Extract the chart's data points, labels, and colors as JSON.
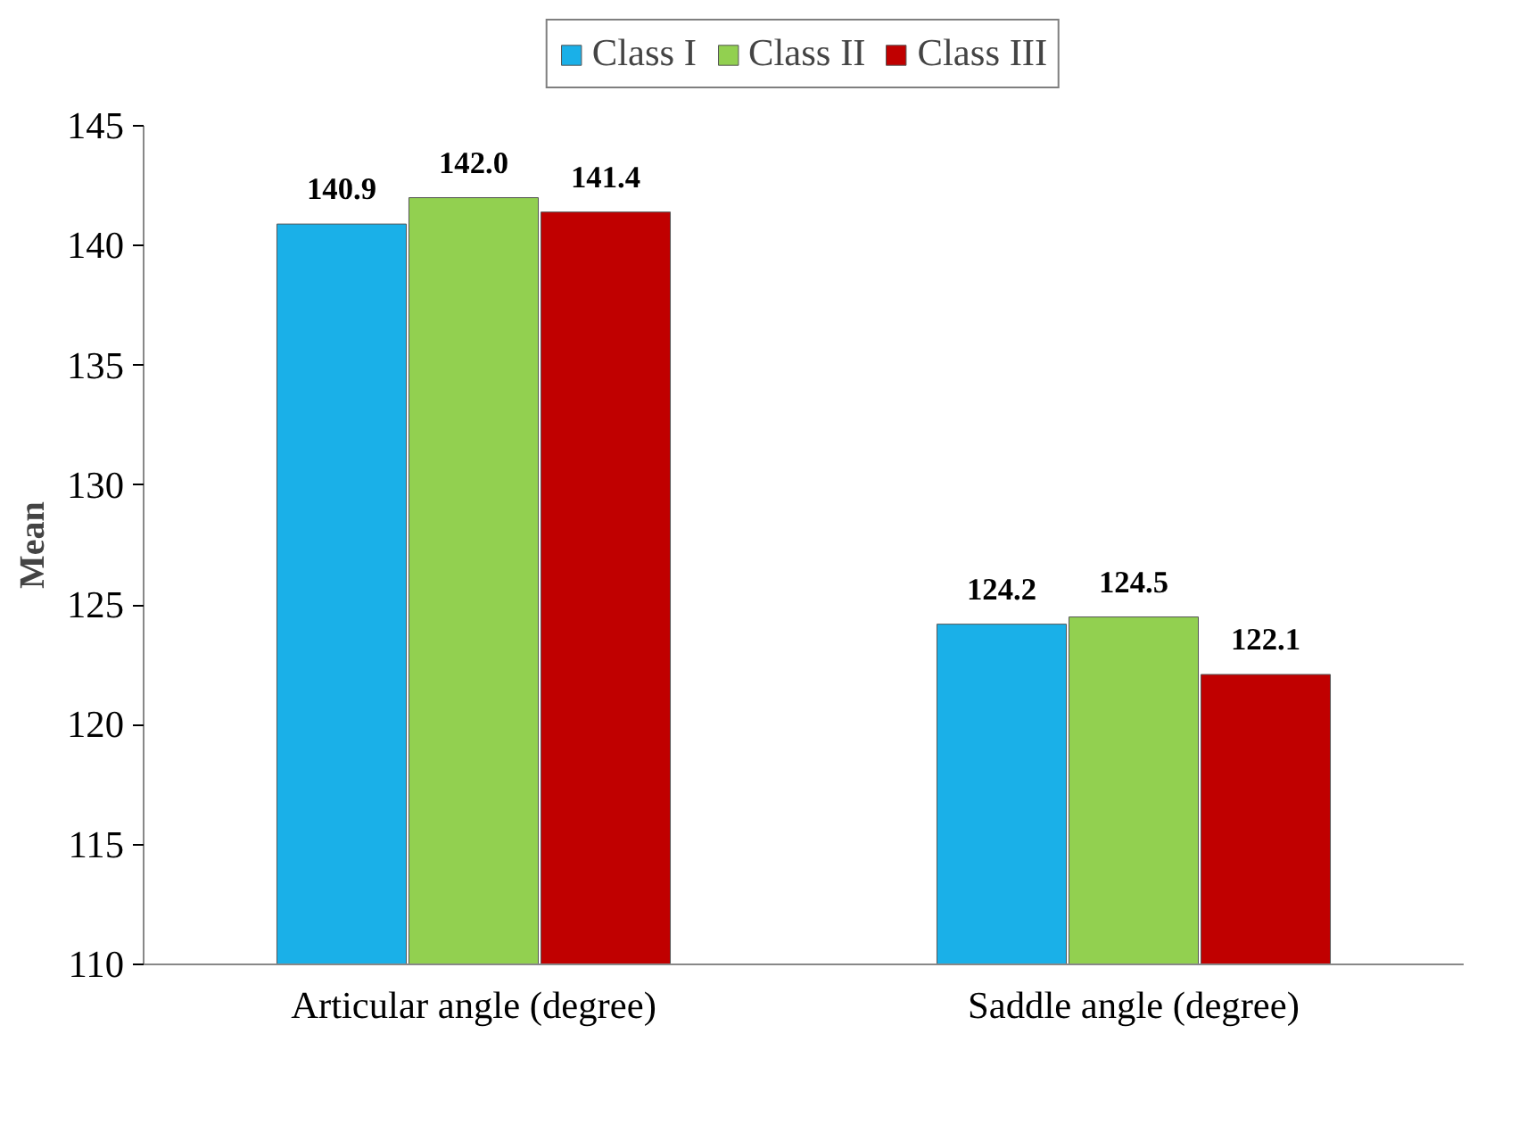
{
  "chart_data": {
    "type": "bar",
    "categories": [
      "Articular angle (degree)",
      "Saddle angle (degree)"
    ],
    "ylabel": "Mean",
    "ylim": [
      110,
      145
    ],
    "yticks": [
      110,
      115,
      120,
      125,
      130,
      135,
      140,
      145
    ],
    "grid": false,
    "legend": "top",
    "series": [
      {
        "name": "Class I",
        "color": "#1ab0e8",
        "values": [
          140.9,
          124.2
        ],
        "value_labels": [
          "140.9",
          "124.2"
        ]
      },
      {
        "name": "Class II",
        "color": "#92d050",
        "values": [
          142.0,
          124.5
        ],
        "value_labels": [
          "142.0",
          "124.5"
        ]
      },
      {
        "name": "Class III",
        "color": "#c00000",
        "values": [
          141.4,
          122.1
        ],
        "value_labels": [
          "141.4",
          "122.1"
        ]
      }
    ]
  }
}
